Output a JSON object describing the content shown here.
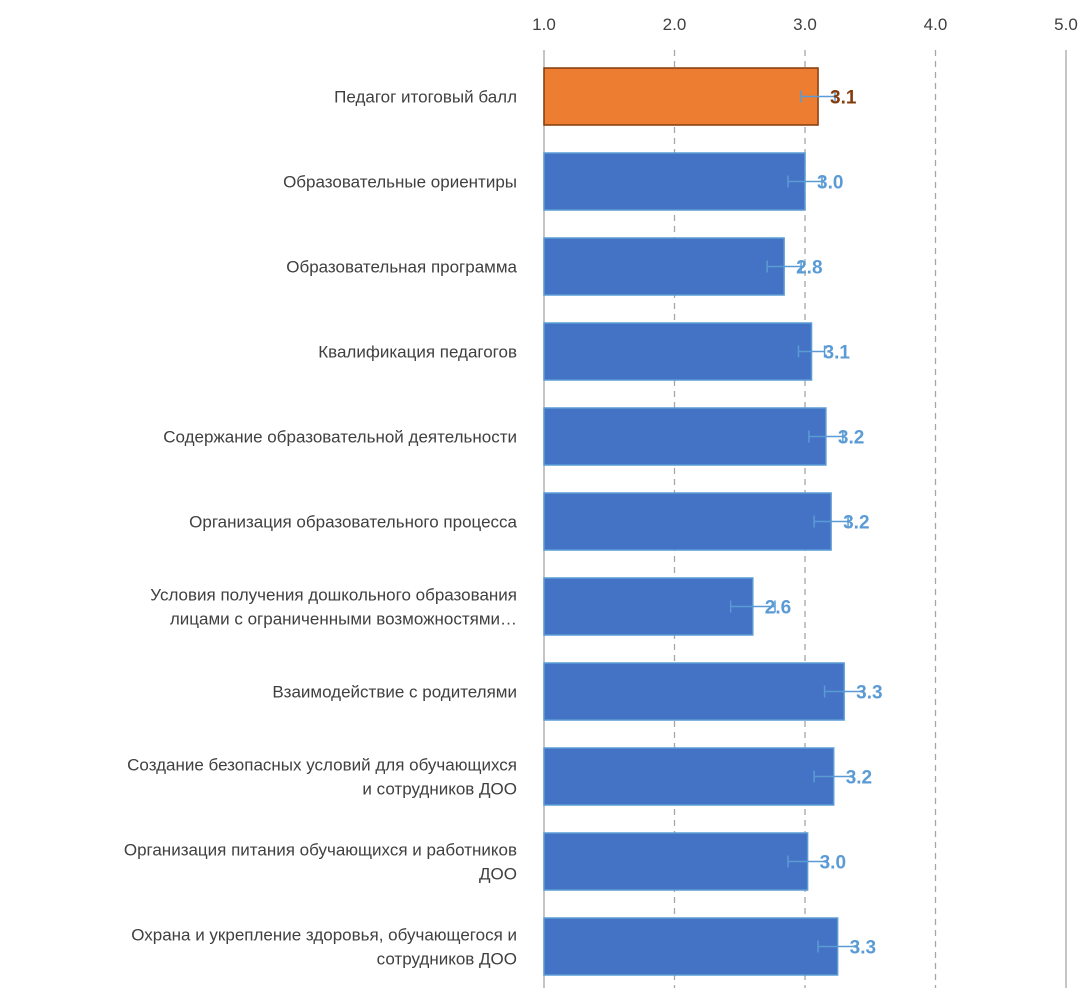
{
  "chart_data": {
    "type": "bar",
    "orientation": "horizontal",
    "xlim": [
      1.0,
      5.0
    ],
    "x_ticks": [
      "1.0",
      "2.0",
      "3.0",
      "4.0",
      "5.0"
    ],
    "x_axis_position": "top",
    "grid": "vertical dashed",
    "categories": [
      {
        "lines": [
          "Педагог итоговый балл"
        ]
      },
      {
        "lines": [
          "Образовательные ориентиры"
        ]
      },
      {
        "lines": [
          "Образовательная программа"
        ]
      },
      {
        "lines": [
          "Квалификация педагогов"
        ]
      },
      {
        "lines": [
          "Содержание образовательной деятельности"
        ]
      },
      {
        "lines": [
          "Организация образовательного процесса"
        ]
      },
      {
        "lines": [
          "Условия получения дошкольного образования",
          "лицами с ограниченными возможностями…"
        ]
      },
      {
        "lines": [
          "Взаимодействие с родителями"
        ]
      },
      {
        "lines": [
          "Создание безопасных условий для обучающихся",
          "и сотрудников ДОО"
        ]
      },
      {
        "lines": [
          "Организация питания обучающихся и работников",
          "ДОО"
        ]
      },
      {
        "lines": [
          "Охрана и укрепление здоровья, обучающегося и",
          "сотрудников ДОО"
        ]
      }
    ],
    "values": [
      3.1,
      3.0,
      2.84,
      3.05,
      3.16,
      3.2,
      2.6,
      3.3,
      3.22,
      3.02,
      3.25
    ],
    "error": [
      0.13,
      0.13,
      0.13,
      0.1,
      0.13,
      0.13,
      0.17,
      0.15,
      0.15,
      0.15,
      0.15
    ],
    "data_labels": [
      "3.1",
      "3.0",
      "2.8",
      "3.1",
      "3.2",
      "3.2",
      "2.6",
      "3.3",
      "3.2",
      "3.0",
      "3.3"
    ],
    "highlight_index": 0,
    "colors": {
      "highlight_fill": "#ED7D31",
      "highlight_stroke": "#843C0C",
      "highlight_label": "#843C0C",
      "bar_fill": "#4472C4",
      "bar_stroke": "#5B9BD5",
      "label": "#5B9BD5",
      "error_bar": "#5B9BD5",
      "grid": "#A6A6A6"
    }
  }
}
